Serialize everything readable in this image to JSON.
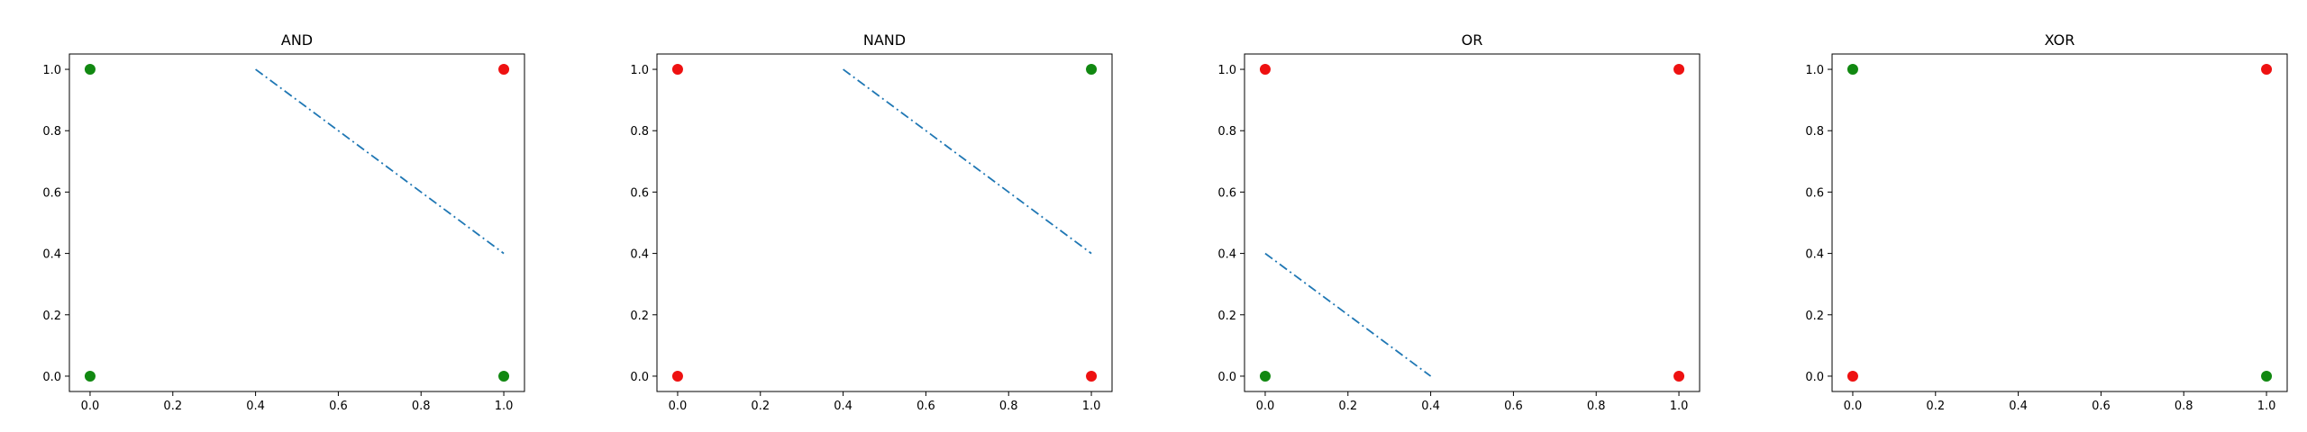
{
  "colors": {
    "class_red": "#ee1111",
    "class_green": "#118811",
    "boundary": "#1f77b4"
  },
  "chart_data": [
    {
      "type": "scatter",
      "title": "AND",
      "xlim": [
        -0.05,
        1.05
      ],
      "ylim": [
        -0.05,
        1.05
      ],
      "xticks": [
        "0.0",
        "0.2",
        "0.4",
        "0.6",
        "0.8",
        "1.0"
      ],
      "yticks": [
        "0.0",
        "0.2",
        "0.4",
        "0.6",
        "0.8",
        "1.0"
      ],
      "points": [
        {
          "x": 0,
          "y": 1,
          "color": "green"
        },
        {
          "x": 1,
          "y": 1,
          "color": "red"
        },
        {
          "x": 0,
          "y": 0,
          "color": "green"
        },
        {
          "x": 1,
          "y": 0,
          "color": "green"
        }
      ],
      "boundary": [
        [
          0.4,
          1.0
        ],
        [
          1.0,
          0.4
        ]
      ]
    },
    {
      "type": "scatter",
      "title": "NAND",
      "xlim": [
        -0.05,
        1.05
      ],
      "ylim": [
        -0.05,
        1.05
      ],
      "xticks": [
        "0.0",
        "0.2",
        "0.4",
        "0.6",
        "0.8",
        "1.0"
      ],
      "yticks": [
        "0.0",
        "0.2",
        "0.4",
        "0.6",
        "0.8",
        "1.0"
      ],
      "points": [
        {
          "x": 0,
          "y": 1,
          "color": "red"
        },
        {
          "x": 1,
          "y": 1,
          "color": "green"
        },
        {
          "x": 0,
          "y": 0,
          "color": "red"
        },
        {
          "x": 1,
          "y": 0,
          "color": "red"
        }
      ],
      "boundary": [
        [
          0.4,
          1.0
        ],
        [
          1.0,
          0.4
        ]
      ]
    },
    {
      "type": "scatter",
      "title": "OR",
      "xlim": [
        -0.05,
        1.05
      ],
      "ylim": [
        -0.05,
        1.05
      ],
      "xticks": [
        "0.0",
        "0.2",
        "0.4",
        "0.6",
        "0.8",
        "1.0"
      ],
      "yticks": [
        "0.0",
        "0.2",
        "0.4",
        "0.6",
        "0.8",
        "1.0"
      ],
      "points": [
        {
          "x": 0,
          "y": 1,
          "color": "red"
        },
        {
          "x": 1,
          "y": 1,
          "color": "red"
        },
        {
          "x": 0,
          "y": 0,
          "color": "green"
        },
        {
          "x": 1,
          "y": 0,
          "color": "red"
        }
      ],
      "boundary": [
        [
          0.0,
          0.4
        ],
        [
          0.4,
          0.0
        ]
      ]
    },
    {
      "type": "scatter",
      "title": "XOR",
      "xlim": [
        -0.05,
        1.05
      ],
      "ylim": [
        -0.05,
        1.05
      ],
      "xticks": [
        "0.0",
        "0.2",
        "0.4",
        "0.6",
        "0.8",
        "1.0"
      ],
      "yticks": [
        "0.0",
        "0.2",
        "0.4",
        "0.6",
        "0.8",
        "1.0"
      ],
      "points": [
        {
          "x": 0,
          "y": 1,
          "color": "green"
        },
        {
          "x": 1,
          "y": 1,
          "color": "red"
        },
        {
          "x": 0,
          "y": 0,
          "color": "red"
        },
        {
          "x": 1,
          "y": 0,
          "color": "green"
        }
      ],
      "boundary": []
    }
  ]
}
